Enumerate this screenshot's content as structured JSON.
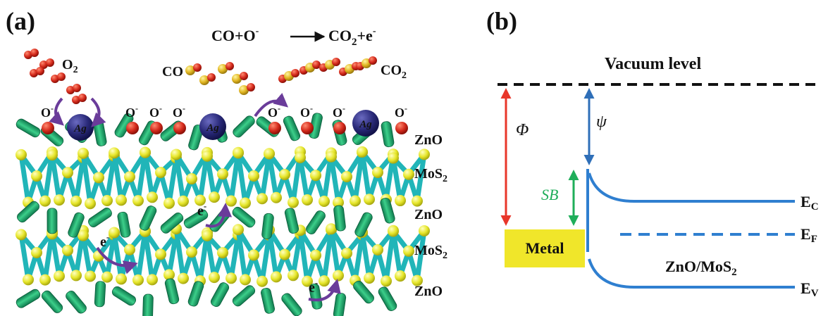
{
  "panel_a": {
    "label": "(a)",
    "reaction": {
      "left": "CO+O",
      "sup1": "-",
      "right": "CO",
      "sub": "2",
      "plus_e": "+e",
      "sup2": "-"
    },
    "o2": {
      "text": "O",
      "sub": "2"
    },
    "co": "CO",
    "co2": {
      "text": "CO",
      "sub": "2"
    },
    "o_minus": {
      "text": "O",
      "sup": "-"
    },
    "ag": "Ag",
    "electron": {
      "text": "e",
      "sup": "-"
    },
    "layers": [
      {
        "text": "ZnO",
        "sub": ""
      },
      {
        "text": "MoS",
        "sub": "2"
      },
      {
        "text": "ZnO",
        "sub": ""
      },
      {
        "text": "MoS",
        "sub": "2"
      },
      {
        "text": "ZnO",
        "sub": ""
      }
    ],
    "colors": {
      "oxygen": "#d42a1c",
      "silver": "#2a2a7a",
      "zno": "#1eaa6e",
      "mo": "#21b5b8",
      "s": "#e6e62a",
      "arrow": "#6a3c9a"
    }
  },
  "panel_b": {
    "label": "(b)",
    "vacuum_level": "Vacuum level",
    "phi": "Φ",
    "psi": "ψ",
    "sb": "SB",
    "metal": "Metal",
    "material": {
      "text": "ZnO/MoS",
      "sub": "2"
    },
    "ec": {
      "text": "E",
      "sub": "C"
    },
    "ef": {
      "text": "E",
      "sub": "F"
    },
    "ev": {
      "text": "E",
      "sub": "V"
    },
    "colors": {
      "phi_arrow": "#e8362a",
      "psi_arrow": "#2f6fb8",
      "sb_arrow": "#1fae5a",
      "band": "#2f7fd0",
      "metal_fill": "#f0e62a"
    }
  }
}
